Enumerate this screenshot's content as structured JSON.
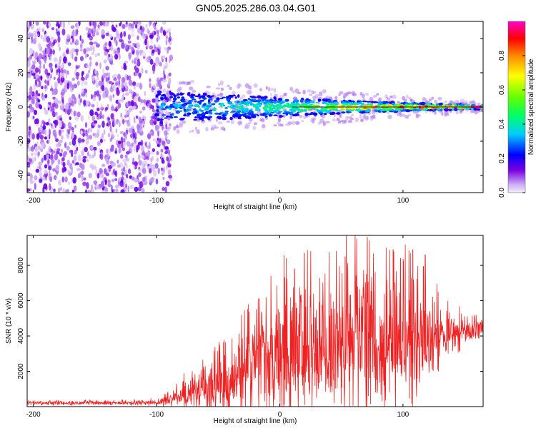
{
  "title": "GN05.2025.286.03.04.G01",
  "chart_data": [
    {
      "type": "heatmap",
      "name": "spectrogram",
      "xlabel": "Height of straight line (km)",
      "ylabel": "Frequency (Hz)",
      "xlim": [
        -205,
        165
      ],
      "ylim": [
        -50,
        50
      ],
      "xticks": [
        -200,
        -100,
        0,
        100
      ],
      "yticks": [
        -40,
        -20,
        0,
        20,
        40
      ],
      "ridge_start_km": -100,
      "noise_region_km": [
        -205,
        -88
      ],
      "colorbar": {
        "label": "Normalized spectral amplitude",
        "range": [
          0,
          1
        ],
        "ticks": [
          0.0,
          0.2,
          0.4,
          0.6,
          0.8
        ],
        "colors": [
          "#e8e0f8",
          "#6600cc",
          "#0000ff",
          "#00ffff",
          "#00ff00",
          "#ffff00",
          "#ff7f00",
          "#ff0000",
          "#ff00ff"
        ]
      }
    },
    {
      "type": "line",
      "name": "snr",
      "xlabel": "Height of straight line (km)",
      "ylabel": "SNR (10 * v/v)",
      "xlim": [
        -205,
        165
      ],
      "ylim": [
        0,
        9700
      ],
      "xticks": [
        -200,
        -100,
        0,
        100
      ],
      "yticks": [
        2000,
        4000,
        6000,
        8000
      ],
      "color": "#ee2222",
      "series": [
        {
          "name": "SNR",
          "x": [
            -205,
            -180,
            -150,
            -120,
            -100,
            -90,
            -80,
            -70,
            -60,
            -50,
            -40,
            -30,
            -20,
            -10,
            0,
            10,
            20,
            30,
            40,
            50,
            60,
            70,
            80,
            90,
            100,
            110,
            120,
            130,
            140,
            150,
            160,
            165
          ],
          "mean": [
            200,
            200,
            200,
            200,
            250,
            350,
            600,
            800,
            1000,
            1200,
            1500,
            1900,
            2300,
            2600,
            2800,
            3000,
            3100,
            3200,
            3300,
            3300,
            3400,
            3400,
            3500,
            3500,
            3600,
            3700,
            3800,
            3900,
            4100,
            4300,
            4400,
            4400
          ],
          "amplitude": [
            150,
            150,
            150,
            150,
            200,
            400,
            900,
            1200,
            1600,
            2000,
            2400,
            2900,
            3400,
            3800,
            4300,
            4600,
            4800,
            5000,
            5000,
            5100,
            5100,
            5100,
            5000,
            4800,
            4500,
            4000,
            3000,
            2200,
            1500,
            1000,
            700,
            600
          ]
        }
      ],
      "peaks": [
        {
          "x": 12,
          "y": 7800
        },
        {
          "x": 20,
          "y": 8700
        },
        {
          "x": 53,
          "y": 8500
        },
        {
          "x": 71,
          "y": 9600
        },
        {
          "x": 92,
          "y": 8900
        },
        {
          "x": 98,
          "y": 8400
        },
        {
          "x": 108,
          "y": 8900
        },
        {
          "x": 118,
          "y": 8600
        }
      ]
    }
  ]
}
